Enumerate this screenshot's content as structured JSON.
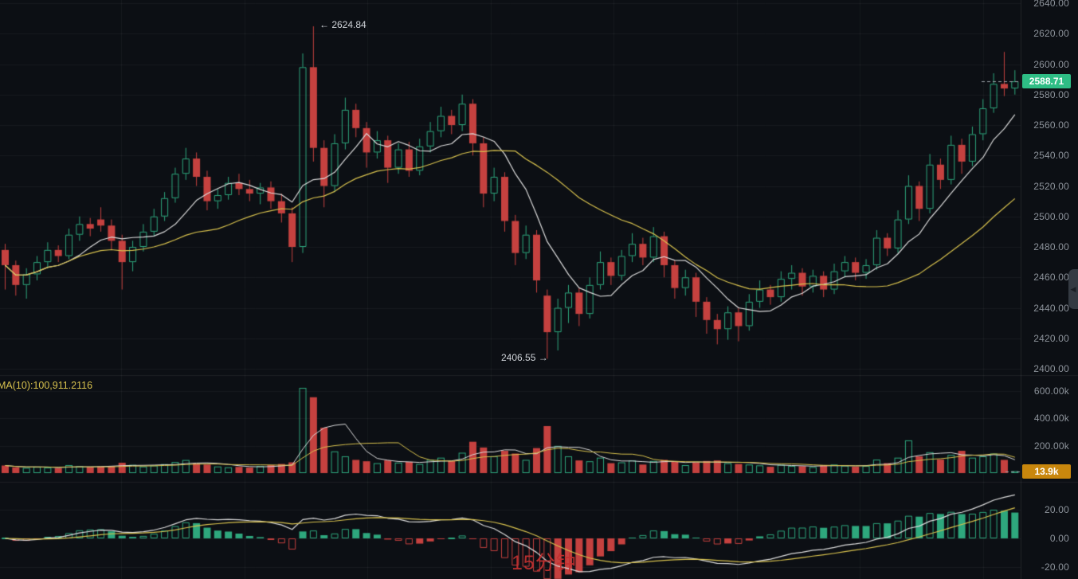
{
  "app": {
    "timeframe_watermark": "15分钟"
  },
  "annotations": {
    "high_label": "← 2624.84",
    "low_label": "2406.55 →"
  },
  "badges": {
    "last_price": "2588.71",
    "current_volume": "13.9k"
  },
  "indicators": {
    "volume_ma_label": "MA(10):100,911.2116"
  },
  "axes": {
    "price_ticks": [
      "2640.00",
      "2620.00",
      "2600.00",
      "2580.00",
      "2560.00",
      "2540.00",
      "2520.00",
      "2500.00",
      "2480.00",
      "2460.00",
      "2440.00",
      "2420.00",
      "2400.00"
    ],
    "volume_ticks": [
      "600.00k",
      "400.00k",
      "200.00k"
    ],
    "macd_ticks": [
      "20.00",
      "0.00",
      "-20.00"
    ]
  },
  "colors": {
    "background": "#0c0f14",
    "up": "#2ea77d",
    "down": "#c5413f",
    "ma_fast": "#dcdcdc",
    "ma_slow": "#d8c24e",
    "price_badge": "#2ebd85",
    "volume_badge": "#c9870d",
    "axis_text": "#8d939b",
    "watermark_red": "#c23030"
  },
  "chart_data": {
    "type": "candlestick",
    "title": "",
    "panes": [
      "price",
      "volume",
      "macd"
    ],
    "legend_position": "none",
    "grid": true,
    "price_axis": {
      "min": 2400,
      "max": 2640,
      "step": 20
    },
    "volume_axis_k": {
      "ticks": [
        200,
        400,
        600
      ]
    },
    "macd_axis": {
      "min": -20,
      "max": 20,
      "step": 20
    },
    "high_annotation": 2624.84,
    "low_annotation": 2406.55,
    "last_price": 2588.71,
    "current_volume_k": 13.9,
    "volume_ma10_value": "100,911.2116",
    "overlays": {
      "price_ma_periods": [
        7,
        21
      ],
      "volume_ma_periods": [
        5,
        10
      ],
      "macd_params": [
        12,
        26,
        9
      ]
    },
    "candles_ohlc": [
      [
        2478,
        2482,
        2452,
        2468
      ],
      [
        2468,
        2471,
        2448,
        2455
      ],
      [
        2455,
        2466,
        2446,
        2462
      ],
      [
        2462,
        2474,
        2458,
        2470
      ],
      [
        2470,
        2483,
        2466,
        2478
      ],
      [
        2478,
        2481,
        2470,
        2474
      ],
      [
        2474,
        2492,
        2472,
        2488
      ],
      [
        2488,
        2500,
        2484,
        2495
      ],
      [
        2495,
        2499,
        2487,
        2492
      ],
      [
        2498,
        2506,
        2490,
        2494
      ],
      [
        2494,
        2498,
        2478,
        2484
      ],
      [
        2484,
        2488,
        2452,
        2470
      ],
      [
        2470,
        2484,
        2464,
        2480
      ],
      [
        2480,
        2495,
        2477,
        2490
      ],
      [
        2490,
        2505,
        2487,
        2500
      ],
      [
        2500,
        2516,
        2497,
        2512
      ],
      [
        2512,
        2532,
        2509,
        2528
      ],
      [
        2528,
        2545,
        2524,
        2538
      ],
      [
        2538,
        2542,
        2520,
        2526
      ],
      [
        2526,
        2530,
        2504,
        2510
      ],
      [
        2510,
        2518,
        2505,
        2514
      ],
      [
        2514,
        2526,
        2511,
        2522
      ],
      [
        2522,
        2528,
        2514,
        2518
      ],
      [
        2518,
        2524,
        2510,
        2515
      ],
      [
        2515,
        2522,
        2508,
        2519
      ],
      [
        2519,
        2523,
        2505,
        2510
      ],
      [
        2510,
        2515,
        2496,
        2502
      ],
      [
        2502,
        2506,
        2470,
        2480
      ],
      [
        2480,
        2607,
        2476,
        2598
      ],
      [
        2598,
        2624.84,
        2536,
        2545
      ],
      [
        2545,
        2550,
        2506,
        2520
      ],
      [
        2520,
        2554,
        2516,
        2548
      ],
      [
        2548,
        2578,
        2544,
        2570
      ],
      [
        2570,
        2574,
        2552,
        2558
      ],
      [
        2558,
        2562,
        2532,
        2542
      ],
      [
        2542,
        2556,
        2538,
        2550
      ],
      [
        2550,
        2553,
        2522,
        2532
      ],
      [
        2532,
        2548,
        2528,
        2544
      ],
      [
        2544,
        2549,
        2526,
        2530
      ],
      [
        2530,
        2551,
        2527,
        2546
      ],
      [
        2546,
        2562,
        2542,
        2556
      ],
      [
        2556,
        2572,
        2552,
        2566
      ],
      [
        2566,
        2570,
        2554,
        2560
      ],
      [
        2560,
        2580,
        2556,
        2574
      ],
      [
        2574,
        2577,
        2540,
        2548
      ],
      [
        2548,
        2552,
        2506,
        2515
      ],
      [
        2515,
        2532,
        2510,
        2526
      ],
      [
        2526,
        2529,
        2490,
        2497
      ],
      [
        2497,
        2501,
        2468,
        2476
      ],
      [
        2476,
        2494,
        2472,
        2488
      ],
      [
        2488,
        2491,
        2450,
        2458
      ],
      [
        2448,
        2452,
        2406.55,
        2424
      ],
      [
        2424,
        2446,
        2412,
        2440
      ],
      [
        2440,
        2455,
        2430,
        2450
      ],
      [
        2450,
        2453,
        2428,
        2436
      ],
      [
        2436,
        2460,
        2433,
        2455
      ],
      [
        2455,
        2477,
        2452,
        2470
      ],
      [
        2470,
        2473,
        2455,
        2461
      ],
      [
        2461,
        2478,
        2458,
        2474
      ],
      [
        2474,
        2489,
        2470,
        2482
      ],
      [
        2482,
        2486,
        2468,
        2473
      ],
      [
        2473,
        2493,
        2470,
        2487
      ],
      [
        2487,
        2490,
        2460,
        2468
      ],
      [
        2468,
        2471,
        2446,
        2453
      ],
      [
        2453,
        2465,
        2448,
        2460
      ],
      [
        2460,
        2463,
        2434,
        2444
      ],
      [
        2444,
        2447,
        2423,
        2432
      ],
      [
        2432,
        2436,
        2416,
        2426
      ],
      [
        2426,
        2441,
        2419,
        2437
      ],
      [
        2437,
        2440,
        2418,
        2428
      ],
      [
        2428,
        2449,
        2425,
        2444
      ],
      [
        2444,
        2458,
        2440,
        2452
      ],
      [
        2452,
        2455,
        2442,
        2447
      ],
      [
        2447,
        2464,
        2444,
        2459
      ],
      [
        2459,
        2468,
        2452,
        2463
      ],
      [
        2463,
        2466,
        2448,
        2454
      ],
      [
        2454,
        2465,
        2450,
        2461
      ],
      [
        2461,
        2464,
        2447,
        2452
      ],
      [
        2452,
        2469,
        2449,
        2464
      ],
      [
        2464,
        2474,
        2460,
        2470
      ],
      [
        2470,
        2473,
        2458,
        2463
      ],
      [
        2463,
        2472,
        2459,
        2468
      ],
      [
        2468,
        2491,
        2465,
        2486
      ],
      [
        2486,
        2489,
        2474,
        2479
      ],
      [
        2479,
        2504,
        2476,
        2498
      ],
      [
        2498,
        2527,
        2495,
        2520
      ],
      [
        2520,
        2523,
        2497,
        2505
      ],
      [
        2505,
        2541,
        2502,
        2534
      ],
      [
        2534,
        2538,
        2518,
        2524
      ],
      [
        2524,
        2553,
        2521,
        2547
      ],
      [
        2547,
        2551,
        2528,
        2536
      ],
      [
        2536,
        2559,
        2533,
        2554
      ],
      [
        2554,
        2577,
        2550,
        2571
      ],
      [
        2571,
        2594,
        2568,
        2587
      ],
      [
        2587,
        2608,
        2579,
        2584
      ],
      [
        2584,
        2596,
        2580,
        2588.71
      ]
    ],
    "volumes_k": [
      55,
      42,
      38,
      45,
      40,
      36,
      58,
      50,
      44,
      48,
      52,
      75,
      60,
      48,
      55,
      65,
      80,
      95,
      70,
      62,
      48,
      42,
      45,
      40,
      52,
      58,
      66,
      78,
      620,
      552,
      330,
      158,
      122,
      96,
      86,
      72,
      92,
      76,
      82,
      66,
      96,
      112,
      88,
      148,
      228,
      186,
      122,
      162,
      142,
      96,
      182,
      342,
      198,
      122,
      92,
      86,
      112,
      72,
      78,
      92,
      62,
      88,
      96,
      82,
      58,
      78,
      88,
      92,
      72,
      66,
      62,
      56,
      46,
      60,
      52,
      50,
      44,
      58,
      62,
      54,
      46,
      52,
      98,
      72,
      112,
      238,
      122,
      152,
      98,
      132,
      162,
      112,
      122,
      142,
      96,
      13.9
    ]
  }
}
